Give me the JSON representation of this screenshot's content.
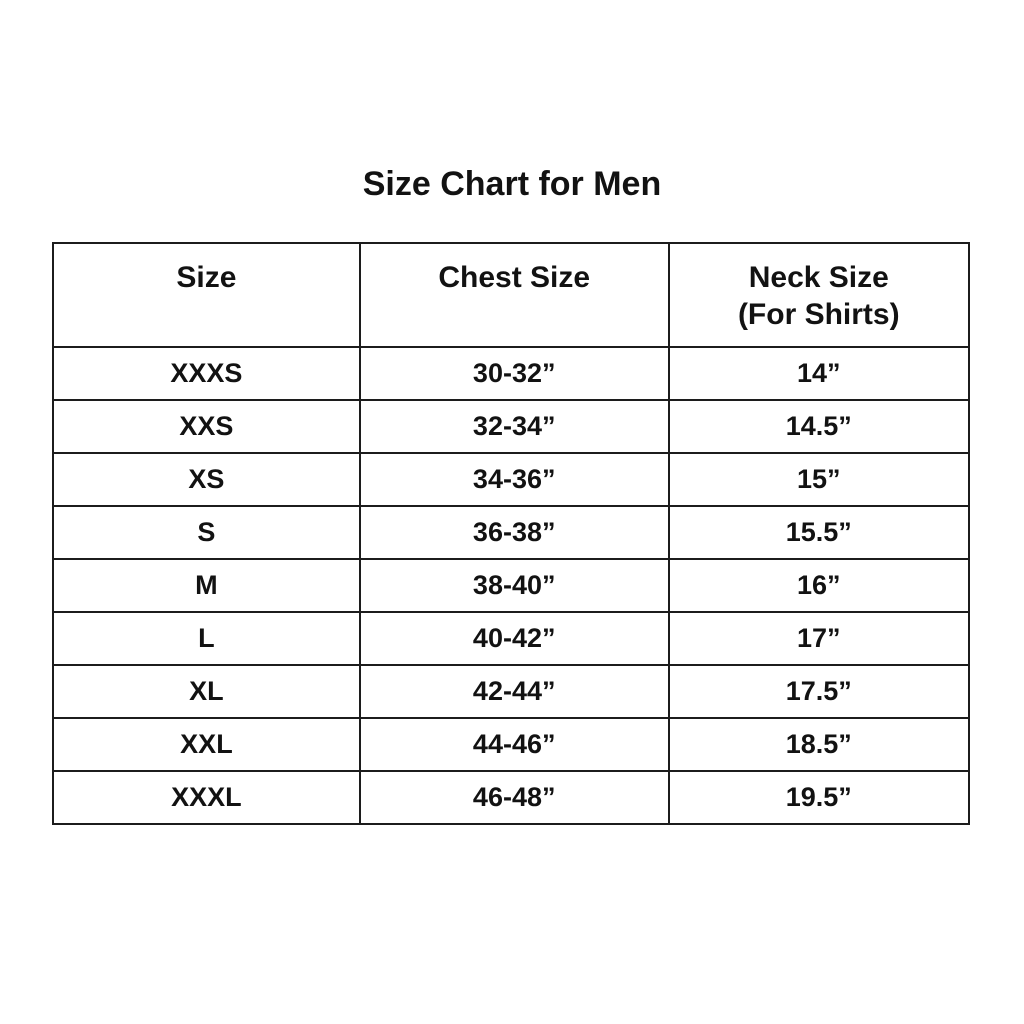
{
  "page": {
    "background": "#ffffff",
    "text_color": "#121212",
    "border_color": "#1c1c1c"
  },
  "title": "Size Chart for Men",
  "table": {
    "headers": [
      "Size",
      "Chest Size",
      "Neck Size\n(For Shirts)"
    ],
    "rows": [
      {
        "size": "XXXS",
        "chest": "30-32”",
        "neck": "14”"
      },
      {
        "size": "XXS",
        "chest": "32-34”",
        "neck": "14.5”"
      },
      {
        "size": "XS",
        "chest": "34-36”",
        "neck": "15”"
      },
      {
        "size": "S",
        "chest": "36-38”",
        "neck": "15.5”"
      },
      {
        "size": "M",
        "chest": "38-40”",
        "neck": "16”"
      },
      {
        "size": "L",
        "chest": "40-42”",
        "neck": "17”"
      },
      {
        "size": "XL",
        "chest": "42-44”",
        "neck": "17.5”"
      },
      {
        "size": "XXL",
        "chest": "44-46”",
        "neck": "18.5”"
      },
      {
        "size": "XXXL",
        "chest": "46-48”",
        "neck": "19.5”"
      }
    ]
  },
  "chart_data": {
    "type": "table",
    "title": "Size Chart for Men",
    "columns": [
      "Size",
      "Chest Size",
      "Neck Size (For Shirts)"
    ],
    "rows": [
      [
        "XXXS",
        "30-32”",
        "14”"
      ],
      [
        "XXS",
        "32-34”",
        "14.5”"
      ],
      [
        "XS",
        "34-36”",
        "15”"
      ],
      [
        "S",
        "36-38”",
        "15.5”"
      ],
      [
        "M",
        "38-40”",
        "16”"
      ],
      [
        "L",
        "40-42”",
        "17”"
      ],
      [
        "XL",
        "42-44”",
        "17.5”"
      ],
      [
        "XXL",
        "44-46”",
        "18.5”"
      ],
      [
        "XXXL",
        "46-48”",
        "19.5”"
      ]
    ],
    "layout_hints": {
      "grid": "all-borders",
      "text_style": "bold",
      "alignment": "center"
    }
  }
}
